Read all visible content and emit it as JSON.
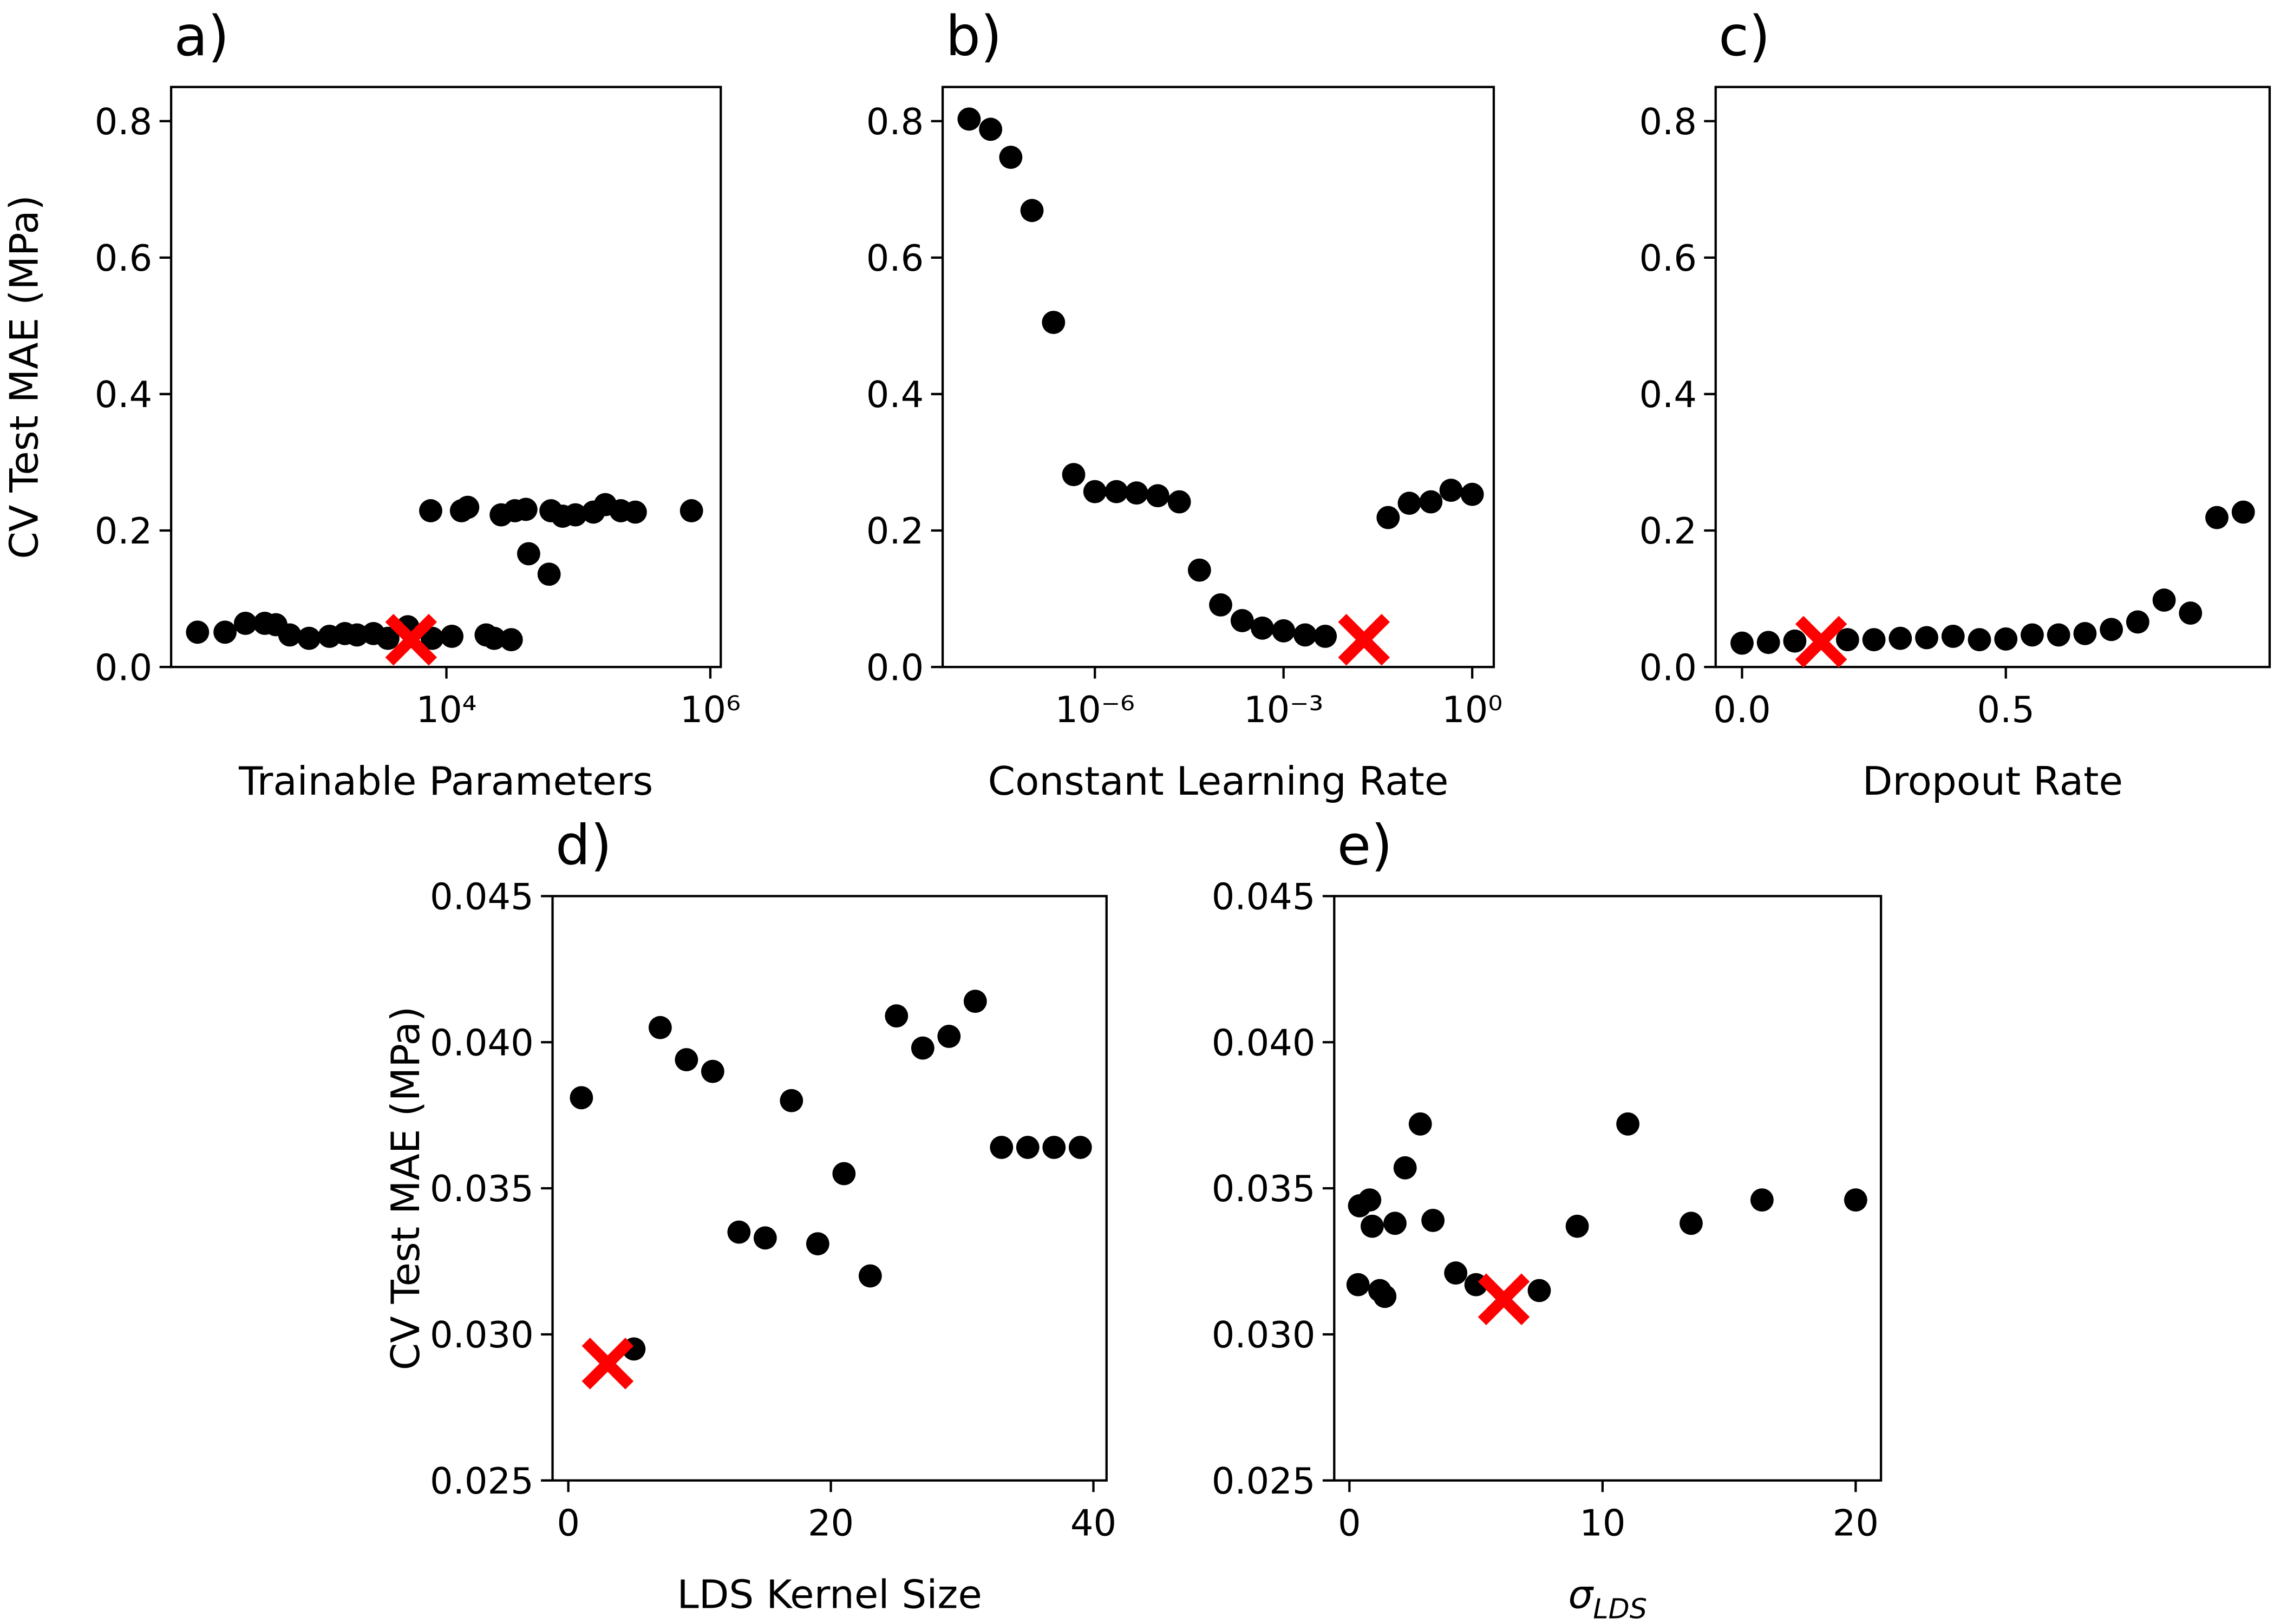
{
  "chart_data": [
    {
      "type": "scatter",
      "panel": "a)",
      "xlabel": "Trainable Parameters",
      "ylabel": "CV Test MAE (MPa)",
      "xscale": "log",
      "color": "#000000",
      "x": [
        130,
        210,
        300,
        420,
        510,
        650,
        910,
        1300,
        1700,
        2100,
        2800,
        3600,
        5100,
        7800,
        11000,
        7600,
        13000,
        14500,
        20000,
        23000,
        31000,
        26000,
        33000,
        42000,
        40000,
        60000,
        62000,
        76000,
        95000,
        130000,
        160000,
        210000,
        270000,
        720000
      ],
      "values": [
        0.051,
        0.051,
        0.064,
        0.064,
        0.062,
        0.047,
        0.042,
        0.045,
        0.049,
        0.047,
        0.049,
        0.042,
        0.059,
        0.042,
        0.045,
        0.229,
        0.229,
        0.234,
        0.047,
        0.042,
        0.04,
        0.223,
        0.229,
        0.166,
        0.231,
        0.136,
        0.229,
        0.221,
        0.223,
        0.227,
        0.238,
        0.229,
        0.227,
        0.229
      ],
      "highlight": {
        "x": 5400,
        "y": 0.04,
        "color": "#ff0000"
      },
      "xlim": [
        82,
        1200000
      ],
      "ylim": [
        0,
        0.85
      ],
      "xticks": [
        {
          "value": 10000,
          "label": "10⁴"
        },
        {
          "value": 1000000,
          "label": "10⁶"
        }
      ],
      "yticks": [
        {
          "value": 0,
          "label": "0.0"
        },
        0.2,
        0.4,
        0.6,
        0.8
      ]
    },
    {
      "type": "scatter",
      "panel": "b)",
      "xlabel": "Constant Learning Rate",
      "xscale": "log",
      "color": "#000000",
      "x": [
        1e-08,
        2.2e-08,
        4.6e-08,
        1e-07,
        2.2e-07,
        4.6e-07,
        1e-06,
        2.2e-06,
        4.6e-06,
        1e-05,
        2.2e-05,
        4.6e-05,
        0.0001,
        0.00022,
        0.00046,
        0.001,
        0.0022,
        0.0046,
        0.046,
        0.1,
        0.22,
        0.46,
        1
      ],
      "values": [
        0.803,
        0.788,
        0.747,
        0.669,
        0.505,
        0.282,
        0.257,
        0.257,
        0.255,
        0.251,
        0.242,
        0.142,
        0.091,
        0.068,
        0.057,
        0.053,
        0.047,
        0.045,
        0.219,
        0.24,
        0.242,
        0.259,
        0.253
      ],
      "highlight": {
        "x": 0.019,
        "y": 0.04,
        "color": "#ff0000"
      },
      "xlim": [
        3.8e-09,
        2.2
      ],
      "ylim": [
        0,
        0.85
      ],
      "xticks": [
        {
          "value": 1e-06,
          "label": "10⁻⁶"
        },
        {
          "value": 0.001,
          "label": "10⁻³"
        },
        {
          "value": 1,
          "label": "10⁰"
        }
      ],
      "yticks": [
        {
          "value": 0,
          "label": "0.0"
        },
        0.2,
        0.4,
        0.6,
        0.8
      ]
    },
    {
      "type": "scatter",
      "panel": "c)",
      "xlabel": "Dropout Rate",
      "color": "#000000",
      "x": [
        0,
        0.05,
        0.1,
        0.2,
        0.25,
        0.3,
        0.35,
        0.4,
        0.45,
        0.5,
        0.55,
        0.6,
        0.65,
        0.7,
        0.75,
        0.8,
        0.85,
        0.9,
        0.95
      ],
      "values": [
        0.035,
        0.036,
        0.038,
        0.04,
        0.04,
        0.042,
        0.043,
        0.045,
        0.04,
        0.041,
        0.047,
        0.047,
        0.049,
        0.055,
        0.066,
        0.098,
        0.079,
        0.219,
        0.227
      ],
      "highlight": {
        "x": 0.15,
        "y": 0.037,
        "color": "#ff0000"
      },
      "xlim": [
        -0.05,
        1.0
      ],
      "ylim": [
        0,
        0.85
      ],
      "xticks": [
        {
          "value": 0,
          "label": "0.0"
        },
        0.5
      ],
      "yticks": [
        {
          "value": 0,
          "label": "0.0"
        },
        0.2,
        0.4,
        0.6,
        0.8
      ]
    },
    {
      "type": "scatter",
      "panel": "d)",
      "xlabel": "LDS Kernel Size",
      "ylabel": "CV Test MAE (MPa)",
      "color": "#000000",
      "x": [
        1,
        5,
        7,
        9,
        11,
        13,
        15,
        17,
        19,
        21,
        23,
        25,
        27,
        29,
        31,
        33,
        35,
        37,
        39
      ],
      "values": [
        0.0381,
        0.0295,
        0.0405,
        0.0394,
        0.039,
        0.0335,
        0.0333,
        0.038,
        0.0331,
        0.0355,
        0.032,
        0.0409,
        0.0398,
        0.0402,
        0.0414,
        0.0364,
        0.0364,
        0.0364,
        0.0364
      ],
      "highlight": {
        "x": 3,
        "y": 0.029,
        "color": "#ff0000"
      },
      "xlim": [
        -1.2,
        41
      ],
      "ylim": [
        0.025,
        0.045
      ],
      "xticks": [
        0,
        20,
        40
      ],
      "yticks": [
        0.025,
        {
          "value": 0.03,
          "label": "0.030"
        },
        0.035,
        {
          "value": 0.04,
          "label": "0.040"
        },
        0.045
      ]
    },
    {
      "type": "scatter",
      "panel": "e)",
      "xlabel": {
        "symbol": "σ",
        "subscript": "LDS"
      },
      "color": "#000000",
      "x": [
        0.34,
        0.4,
        0.8,
        0.9,
        1.2,
        1.4,
        1.8,
        2.2,
        2.8,
        3.3,
        4.2,
        5.0,
        7.5,
        9.0,
        11.0,
        13.5,
        16.3,
        20
      ],
      "values": [
        0.0317,
        0.0344,
        0.0346,
        0.0337,
        0.0315,
        0.0313,
        0.0338,
        0.0357,
        0.0372,
        0.0339,
        0.0321,
        0.0317,
        0.0315,
        0.0337,
        0.0372,
        0.0338,
        0.0346,
        0.0346
      ],
      "highlight": {
        "x": 6.1,
        "y": 0.0312,
        "color": "#ff0000"
      },
      "xlim": [
        -0.6,
        21
      ],
      "ylim": [
        0.025,
        0.045
      ],
      "xticks": [
        0,
        10,
        20
      ],
      "yticks": [
        0.025,
        {
          "value": 0.03,
          "label": "0.030"
        },
        0.035,
        {
          "value": 0.04,
          "label": "0.040"
        },
        0.045
      ]
    }
  ]
}
